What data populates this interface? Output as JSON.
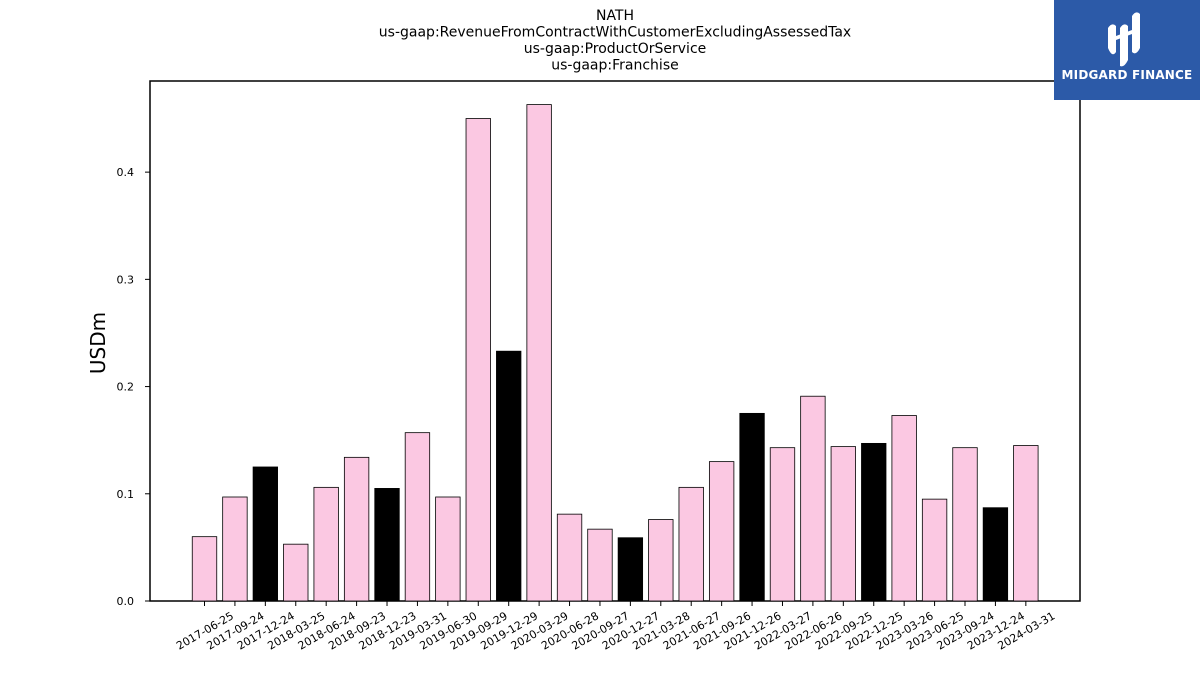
{
  "chart_data": {
    "type": "bar",
    "title_lines": [
      "NATH",
      "us-gaap:RevenueFromContractWithCustomerExcludingAssessedTax",
      "us-gaap:ProductOrService",
      "us-gaap:Franchise"
    ],
    "ylabel": "USDm",
    "ylim": [
      0,
      0.485
    ],
    "yticks": [
      "0.0",
      "0.1",
      "0.2",
      "0.3",
      "0.4"
    ],
    "categories": [
      "2017-06-25",
      "2017-09-24",
      "2017-12-24",
      "2018-03-25",
      "2018-06-24",
      "2018-09-23",
      "2018-12-23",
      "2019-03-31",
      "2019-06-30",
      "2019-09-29",
      "2019-12-29",
      "2020-03-29",
      "2020-06-28",
      "2020-09-27",
      "2020-12-27",
      "2021-03-28",
      "2021-06-27",
      "2021-09-26",
      "2021-12-26",
      "2022-03-27",
      "2022-06-26",
      "2022-09-25",
      "2022-12-25",
      "2023-03-26",
      "2023-06-25",
      "2023-09-24",
      "2023-12-24",
      "2024-03-31"
    ],
    "values": [
      0.06,
      0.097,
      0.125,
      0.053,
      0.106,
      0.134,
      0.105,
      0.157,
      0.097,
      0.45,
      0.233,
      0.463,
      0.081,
      0.067,
      0.059,
      0.076,
      0.106,
      0.13,
      0.175,
      0.143,
      0.191,
      0.144,
      0.147,
      0.173,
      0.095,
      0.143,
      0.087,
      0.145
    ],
    "highlighted": [
      false,
      false,
      true,
      false,
      false,
      false,
      true,
      false,
      false,
      false,
      true,
      false,
      false,
      false,
      true,
      false,
      false,
      false,
      true,
      false,
      false,
      false,
      true,
      false,
      false,
      false,
      true,
      false
    ],
    "colors": {
      "bar": "#fbc8e2",
      "bar_highlight": "#000000",
      "edge": "#000000"
    }
  },
  "logo": {
    "text": "MIDGARD FINANCE",
    "background": "#2c5aa8"
  }
}
